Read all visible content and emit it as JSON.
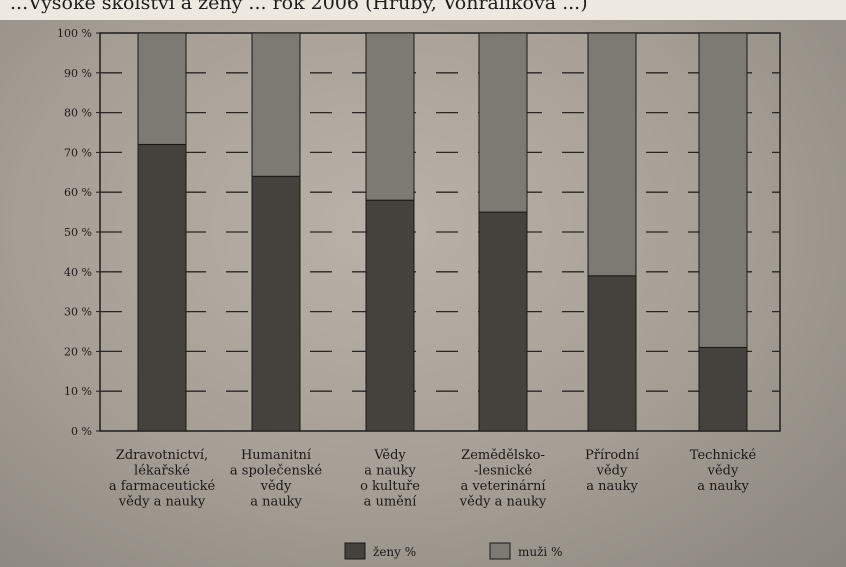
{
  "title": "...Vysoké školství a ženy ... rok 2006 (Hrubý, Vohralíková ...)",
  "chart_data": {
    "type": "bar",
    "stacked": true,
    "categories": [
      [
        "Zdravotnictví,",
        "lékařské",
        "a farmaceutické",
        "vědy a nauky"
      ],
      [
        "Humanitní",
        "a společenské",
        "vědy",
        "a nauky"
      ],
      [
        "Vědy",
        "a nauky",
        "o kultuře",
        "a umění"
      ],
      [
        "Zemědělsko-",
        "-lesnické",
        "a veterinární",
        "vědy a nauky"
      ],
      [
        "Přírodní",
        "vědy",
        "a nauky"
      ],
      [
        "Technické",
        "vědy",
        "a nauky"
      ]
    ],
    "series": [
      {
        "name": "ženy %",
        "values": [
          72,
          64,
          58,
          55,
          39,
          21
        ],
        "color": "#45413d"
      },
      {
        "name": "muži %",
        "values": [
          28,
          36,
          42,
          45,
          61,
          79
        ],
        "color": "#7d7a74"
      }
    ],
    "ylim": [
      0,
      100
    ],
    "yticks": [
      "0 %",
      "10 %",
      "20 %",
      "30 %",
      "40 %",
      "50 %",
      "60 %",
      "70 %",
      "80 %",
      "90 %",
      "100 %"
    ],
    "grid": "dashed",
    "legend": "bottom"
  }
}
